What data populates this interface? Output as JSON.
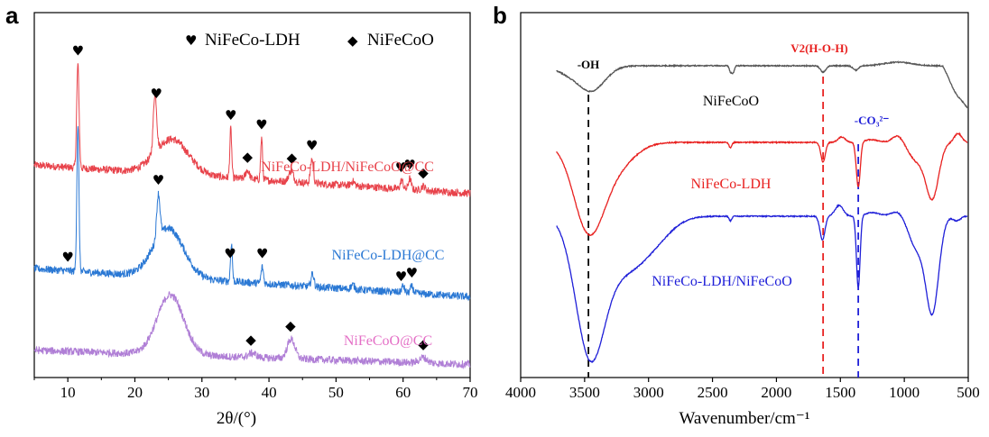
{
  "chart_data": [
    {
      "panel": "a",
      "type": "line",
      "xlabel": "2θ/(°)",
      "ylabel": "",
      "xlim": [
        5,
        70
      ],
      "xticks": [
        10,
        20,
        30,
        40,
        50,
        60,
        70
      ],
      "legend": [
        {
          "symbol": "♥",
          "label": "NiFeCo-LDH"
        },
        {
          "symbol": "◆",
          "label": "NiFeCoO"
        }
      ],
      "series": [
        {
          "name": "NiFeCo-LDH/NiFeCoO@CC",
          "color": "#e8434b",
          "baseline": 1.95,
          "hump": {
            "center": 25.5,
            "width": 3.5,
            "height": 0.32
          },
          "slope": -0.004,
          "peaks": [
            {
              "x": 11.5,
              "h": 0.95,
              "w": 0.25
            },
            {
              "x": 23.0,
              "h": 0.55,
              "w": 0.35
            },
            {
              "x": 34.3,
              "h": 0.45,
              "w": 0.2
            },
            {
              "x": 36.8,
              "h": 0.08,
              "w": 0.4
            },
            {
              "x": 38.9,
              "h": 0.38,
              "w": 0.2
            },
            {
              "x": 43.3,
              "h": 0.1,
              "w": 0.5
            },
            {
              "x": 46.4,
              "h": 0.22,
              "w": 0.3
            },
            {
              "x": 52.5,
              "h": 0.04,
              "w": 0.4
            },
            {
              "x": 59.8,
              "h": 0.08,
              "w": 0.3
            },
            {
              "x": 61.0,
              "h": 0.1,
              "w": 0.3
            },
            {
              "x": 63.0,
              "h": 0.04,
              "w": 0.4
            }
          ],
          "markers": [
            {
              "x": 11.5,
              "symbol": "♥"
            },
            {
              "x": 23.2,
              "symbol": "♥"
            },
            {
              "x": 34.3,
              "symbol": "♥"
            },
            {
              "x": 36.8,
              "symbol": "◆"
            },
            {
              "x": 38.9,
              "symbol": "♥"
            },
            {
              "x": 43.4,
              "symbol": "◆"
            },
            {
              "x": 46.4,
              "symbol": "♥"
            },
            {
              "x": 59.7,
              "symbol": "♥"
            },
            {
              "x": 61.0,
              "symbol": "♥"
            },
            {
              "x": 63.0,
              "symbol": "◆"
            }
          ]
        },
        {
          "name": "NiFeCo-LDH@CC",
          "color": "#2a78d4",
          "baseline": 1.0,
          "hump": {
            "center": 25.0,
            "width": 3.2,
            "height": 0.45
          },
          "slope": -0.004,
          "peaks": [
            {
              "x": 11.5,
              "h": 1.35,
              "w": 0.22
            },
            {
              "x": 23.5,
              "h": 0.4,
              "w": 0.35
            },
            {
              "x": 34.4,
              "h": 0.35,
              "w": 0.2
            },
            {
              "x": 39.0,
              "h": 0.15,
              "w": 0.25
            },
            {
              "x": 46.5,
              "h": 0.12,
              "w": 0.3
            },
            {
              "x": 52.5,
              "h": 0.04,
              "w": 0.4
            },
            {
              "x": 60.0,
              "h": 0.06,
              "w": 0.3
            },
            {
              "x": 61.3,
              "h": 0.06,
              "w": 0.3
            }
          ],
          "markers": [
            {
              "x": 10.0,
              "symbol": "♥"
            },
            {
              "x": 23.5,
              "symbol": "♥"
            },
            {
              "x": 34.2,
              "symbol": "♥"
            },
            {
              "x": 39.0,
              "symbol": "♥"
            },
            {
              "x": 59.7,
              "symbol": "♥"
            },
            {
              "x": 61.3,
              "symbol": "♥"
            }
          ]
        },
        {
          "name": "NiFeCoO@CC",
          "color": "#b07fd6",
          "baseline": 0.25,
          "hump": {
            "center": 25.3,
            "width": 2.8,
            "height": 0.55
          },
          "slope": -0.002,
          "peaks": [
            {
              "x": 37.5,
              "h": 0.04,
              "w": 0.8
            },
            {
              "x": 43.3,
              "h": 0.18,
              "w": 0.8
            },
            {
              "x": 63.0,
              "h": 0.05,
              "w": 0.8
            }
          ],
          "markers": [
            {
              "x": 37.3,
              "symbol": "◆"
            },
            {
              "x": 43.2,
              "symbol": "◆"
            },
            {
              "x": 63.0,
              "symbol": "◆"
            }
          ]
        }
      ]
    },
    {
      "panel": "b",
      "type": "line",
      "xlabel": "Wavenumber/cm⁻¹",
      "ylabel": "",
      "xlim": [
        4000,
        500
      ],
      "xticks": [
        4000,
        3500,
        3000,
        2500,
        2000,
        1500,
        1000,
        500
      ],
      "series": [
        {
          "name": "NiFeCoO",
          "color": "#555555"
        },
        {
          "name": "NiFeCo-LDH",
          "color": "#e8201f"
        },
        {
          "name": "NiFeCo-LDH/NiFeCoO",
          "color": "#1f1fd8"
        }
      ],
      "annotations": [
        {
          "label": "-OH",
          "x": 3470,
          "color": "#000000"
        },
        {
          "label": "V2(H-O-H)",
          "x": 1635,
          "color": "#e8201f"
        },
        {
          "label": "-CO₃²⁻",
          "x": 1360,
          "color": "#1f1fd8"
        }
      ]
    }
  ]
}
